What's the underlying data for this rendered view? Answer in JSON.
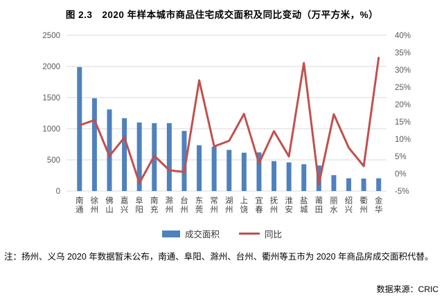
{
  "figure": {
    "title": "图 2.3　2020 年样本城市商品住宅成交面积及同比变动（万平方米，%）",
    "note": "注：扬州、义乌 2020 年数据暂未公布，南通、阜阳、滁州、台州、衢州等五市为 2020 年商品房成交面积代替。",
    "source": "数据来源：CRIC"
  },
  "legend": {
    "bar_label": "成交面积",
    "line_label": "同比"
  },
  "colors": {
    "bar": "#4F81BD",
    "line": "#C0504D",
    "grid": "#D9D9D9",
    "axis_text": "#595959",
    "category_text": "#404040"
  },
  "chart_data": {
    "type": "bar",
    "subtype": "bar+line-dual-axis",
    "title": "图 2.3　2020 年样本城市商品住宅成交面积及同比变动（万平方米，%）",
    "categories": [
      "南通",
      "徐州",
      "佛山",
      "嘉兴",
      "阜阳",
      "南充",
      "滁州",
      "台州",
      "东莞",
      "常州",
      "湖州",
      "上饶",
      "宜春",
      "抚州",
      "淮安",
      "盐城",
      "莆田",
      "丽水",
      "绍兴",
      "衢州",
      "金华"
    ],
    "series": [
      {
        "name": "成交面积",
        "type": "bar",
        "axis": "left",
        "values": [
          1990,
          1490,
          1310,
          1170,
          1100,
          1090,
          1090,
          965,
          735,
          710,
          660,
          615,
          620,
          480,
          460,
          430,
          410,
          255,
          205,
          200,
          205
        ]
      },
      {
        "name": "同比",
        "type": "line",
        "axis": "right",
        "values": [
          14,
          15.5,
          5.1,
          10.5,
          -2.7,
          5.2,
          1,
          0.5,
          27,
          7.9,
          9.5,
          17.3,
          3,
          12.3,
          5,
          32,
          -3,
          17.2,
          7.5,
          2.2,
          33.5
        ]
      }
    ],
    "left_axis": {
      "min": 0,
      "max": 2500,
      "step": 500,
      "ticks": [
        "0",
        "500",
        "1000",
        "1500",
        "2000",
        "2500"
      ]
    },
    "right_axis": {
      "min": -5,
      "max": 40,
      "step": 5,
      "suffix": "%",
      "ticks": [
        "-5%",
        "0%",
        "5%",
        "10%",
        "15%",
        "20%",
        "25%",
        "30%",
        "35%",
        "40%"
      ]
    },
    "grid": true,
    "legend_position": "bottom",
    "xlabel": "",
    "ylabel_left": "万平方米",
    "ylabel_right": "%"
  }
}
